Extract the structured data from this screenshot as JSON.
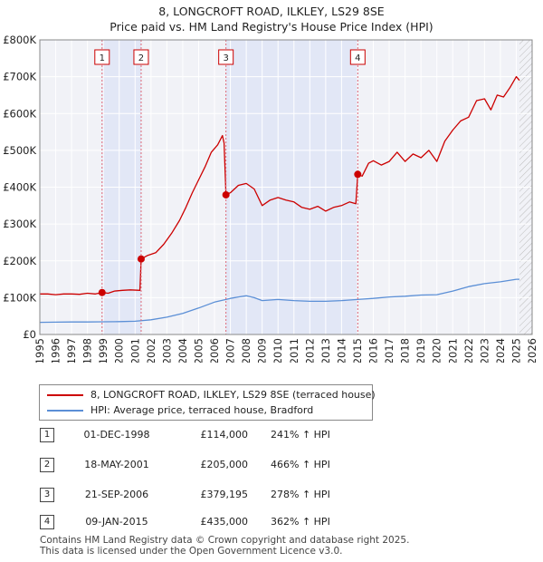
{
  "header": {
    "title": "8, LONGCROFT ROAD, ILKLEY, LS29 8SE",
    "subtitle": "Price paid vs. HM Land Registry's House Price Index (HPI)"
  },
  "chart_data": {
    "type": "line",
    "xlim": [
      1995,
      2026
    ],
    "ylim": [
      0,
      800000
    ],
    "x_ticks": [
      "1995",
      "1996",
      "1997",
      "1998",
      "1999",
      "2000",
      "2001",
      "2002",
      "2003",
      "2004",
      "2005",
      "2006",
      "2007",
      "2008",
      "2009",
      "2010",
      "2011",
      "2012",
      "2013",
      "2014",
      "2015",
      "2016",
      "2017",
      "2018",
      "2019",
      "2020",
      "2021",
      "2022",
      "2023",
      "2024",
      "2025",
      "2026"
    ],
    "y_ticks": [
      {
        "value": 0,
        "label": "£0"
      },
      {
        "value": 100000,
        "label": "£100K"
      },
      {
        "value": 200000,
        "label": "£200K"
      },
      {
        "value": 300000,
        "label": "£300K"
      },
      {
        "value": 400000,
        "label": "£400K"
      },
      {
        "value": 500000,
        "label": "£500K"
      },
      {
        "value": 600000,
        "label": "£600K"
      },
      {
        "value": 700000,
        "label": "£700K"
      },
      {
        "value": 800000,
        "label": "£800K"
      }
    ],
    "grid": true,
    "shaded_ranges": [
      [
        1998.92,
        2001.38
      ],
      [
        2006.72,
        2015.02
      ]
    ],
    "future_hatch_from": 2025.2,
    "series": [
      {
        "name": "8, LONGCROFT ROAD, ILKLEY, LS29 8SE (terraced house)",
        "color": "#cc0000",
        "points": [
          [
            1995.0,
            110000
          ],
          [
            1995.5,
            110000
          ],
          [
            1996.0,
            108000
          ],
          [
            1996.5,
            110000
          ],
          [
            1997.0,
            110000
          ],
          [
            1997.5,
            109000
          ],
          [
            1998.0,
            112000
          ],
          [
            1998.5,
            110000
          ],
          [
            1998.92,
            114000
          ],
          [
            1999.3,
            112000
          ],
          [
            1999.7,
            118000
          ],
          [
            2000.2,
            120000
          ],
          [
            2000.7,
            121000
          ],
          [
            2001.3,
            120000
          ],
          [
            2001.38,
            205000
          ],
          [
            2001.8,
            215000
          ],
          [
            2002.3,
            222000
          ],
          [
            2002.8,
            245000
          ],
          [
            2003.3,
            275000
          ],
          [
            2003.8,
            310000
          ],
          [
            2004.2,
            345000
          ],
          [
            2004.6,
            385000
          ],
          [
            2005.0,
            420000
          ],
          [
            2005.4,
            455000
          ],
          [
            2005.8,
            495000
          ],
          [
            2006.2,
            515000
          ],
          [
            2006.5,
            540000
          ],
          [
            2006.6,
            520000
          ],
          [
            2006.72,
            379195
          ],
          [
            2007.0,
            385000
          ],
          [
            2007.5,
            405000
          ],
          [
            2008.0,
            410000
          ],
          [
            2008.5,
            395000
          ],
          [
            2009.0,
            350000
          ],
          [
            2009.5,
            365000
          ],
          [
            2010.0,
            372000
          ],
          [
            2010.5,
            365000
          ],
          [
            2011.0,
            360000
          ],
          [
            2011.5,
            345000
          ],
          [
            2012.0,
            340000
          ],
          [
            2012.5,
            348000
          ],
          [
            2013.0,
            335000
          ],
          [
            2013.5,
            345000
          ],
          [
            2014.0,
            350000
          ],
          [
            2014.5,
            360000
          ],
          [
            2014.9,
            355000
          ],
          [
            2015.02,
            435000
          ],
          [
            2015.3,
            430000
          ],
          [
            2015.7,
            465000
          ],
          [
            2016.0,
            472000
          ],
          [
            2016.5,
            460000
          ],
          [
            2017.0,
            470000
          ],
          [
            2017.5,
            495000
          ],
          [
            2018.0,
            470000
          ],
          [
            2018.5,
            490000
          ],
          [
            2019.0,
            480000
          ],
          [
            2019.5,
            500000
          ],
          [
            2020.0,
            470000
          ],
          [
            2020.5,
            525000
          ],
          [
            2021.0,
            555000
          ],
          [
            2021.5,
            580000
          ],
          [
            2022.0,
            590000
          ],
          [
            2022.5,
            635000
          ],
          [
            2023.0,
            640000
          ],
          [
            2023.4,
            610000
          ],
          [
            2023.8,
            650000
          ],
          [
            2024.2,
            645000
          ],
          [
            2024.6,
            670000
          ],
          [
            2025.0,
            700000
          ],
          [
            2025.2,
            690000
          ]
        ]
      },
      {
        "name": "HPI: Average price, terraced house, Bradford",
        "color": "#5b8fd6",
        "points": [
          [
            1995.0,
            33000
          ],
          [
            1996.0,
            33500
          ],
          [
            1997.0,
            34000
          ],
          [
            1998.0,
            34000
          ],
          [
            1999.0,
            34500
          ],
          [
            2000.0,
            35000
          ],
          [
            2001.0,
            36000
          ],
          [
            2002.0,
            40000
          ],
          [
            2003.0,
            47000
          ],
          [
            2004.0,
            57000
          ],
          [
            2005.0,
            72000
          ],
          [
            2006.0,
            88000
          ],
          [
            2007.0,
            98000
          ],
          [
            2007.5,
            102000
          ],
          [
            2008.0,
            105000
          ],
          [
            2008.5,
            100000
          ],
          [
            2009.0,
            92000
          ],
          [
            2010.0,
            95000
          ],
          [
            2011.0,
            92000
          ],
          [
            2012.0,
            90000
          ],
          [
            2013.0,
            90000
          ],
          [
            2014.0,
            92000
          ],
          [
            2015.0,
            95000
          ],
          [
            2016.0,
            98000
          ],
          [
            2017.0,
            102000
          ],
          [
            2018.0,
            104000
          ],
          [
            2019.0,
            107000
          ],
          [
            2020.0,
            108000
          ],
          [
            2021.0,
            118000
          ],
          [
            2022.0,
            130000
          ],
          [
            2023.0,
            138000
          ],
          [
            2024.0,
            143000
          ],
          [
            2025.0,
            150000
          ],
          [
            2025.2,
            150000
          ]
        ]
      }
    ],
    "transactions": [
      {
        "num": "1",
        "date": "01-DEC-1998",
        "price": "£114,000",
        "hpi": "241% ↑ HPI",
        "x": 1998.92,
        "y": 114000
      },
      {
        "num": "2",
        "date": "18-MAY-2001",
        "price": "£205,000",
        "hpi": "466% ↑ HPI",
        "x": 2001.38,
        "y": 205000
      },
      {
        "num": "3",
        "date": "21-SEP-2006",
        "price": "£379,195",
        "hpi": "278% ↑ HPI",
        "x": 2006.72,
        "y": 379195
      },
      {
        "num": "4",
        "date": "09-JAN-2015",
        "price": "£435,000",
        "hpi": "362% ↑ HPI",
        "x": 2015.02,
        "y": 435000
      }
    ]
  },
  "legend": {
    "property_label": "8, LONGCROFT ROAD, ILKLEY, LS29 8SE (terraced house)",
    "hpi_label": "HPI: Average price, terraced house, Bradford"
  },
  "footer": {
    "line1": "Contains HM Land Registry data © Crown copyright and database right 2025.",
    "line2": "This data is licensed under the Open Government Licence v3.0."
  }
}
